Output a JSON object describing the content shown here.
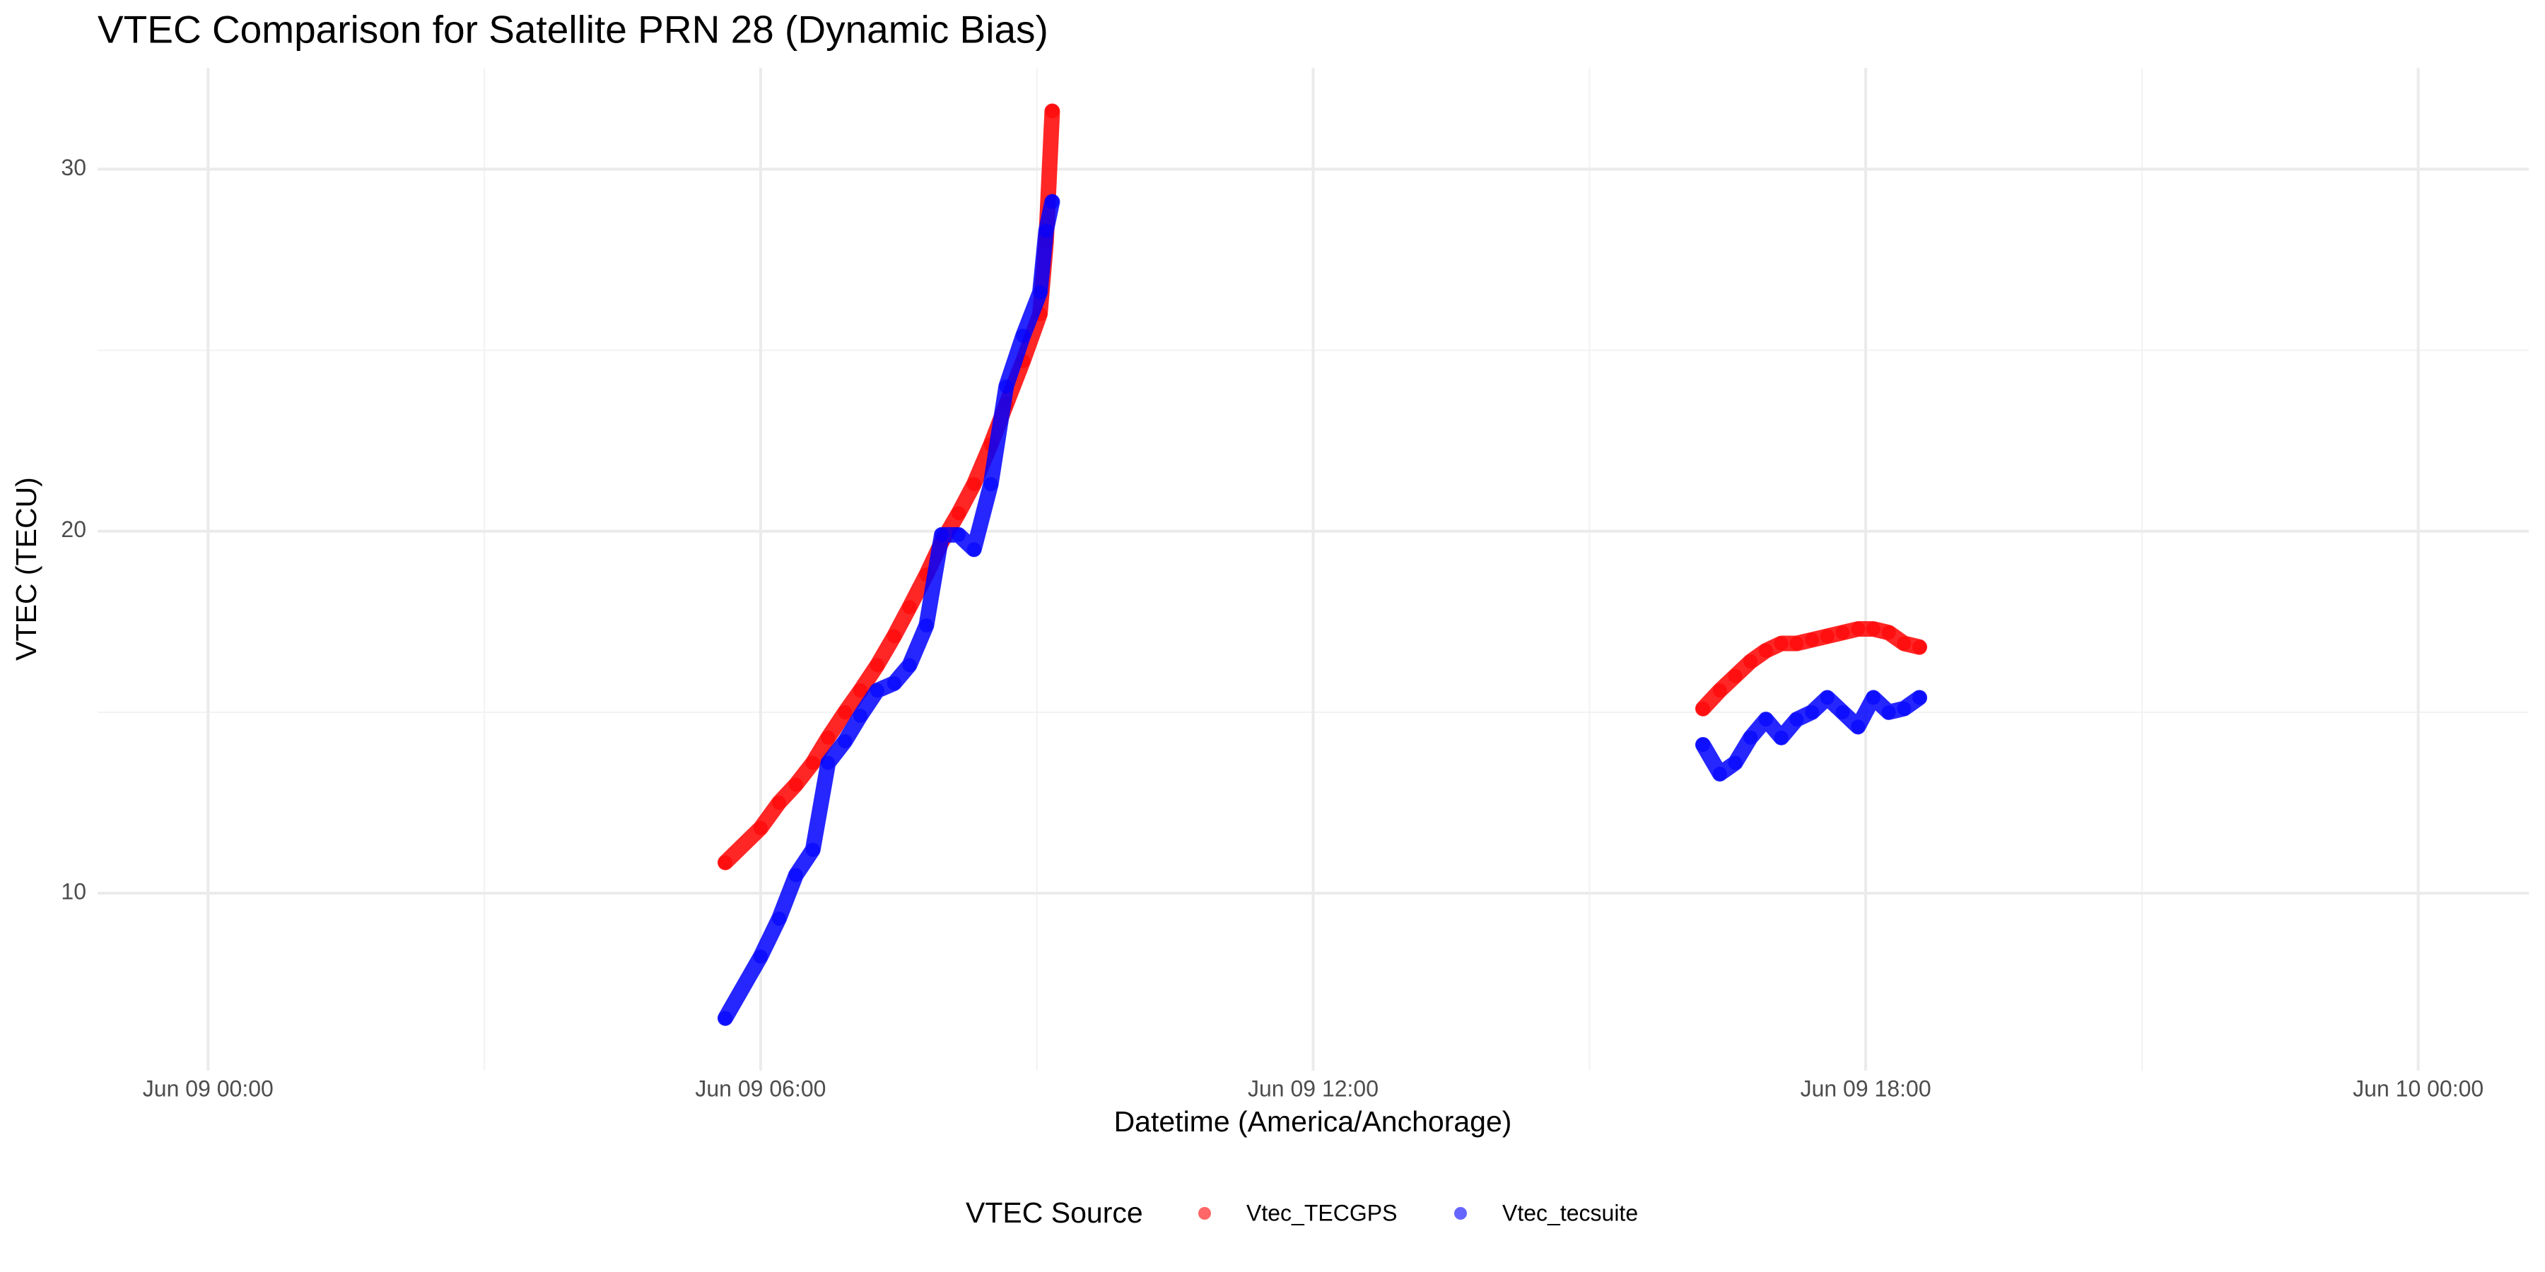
{
  "chart_data": {
    "type": "scatter",
    "title": "VTEC Comparison for Satellite PRN 28 (Dynamic Bias)",
    "x_label": "Datetime (America/Anchorage)",
    "y_label": "VTEC (TECU)",
    "legend_title": "VTEC Source",
    "legend_position": "bottom",
    "grid": true,
    "x": [
      "Jun 09 05:37",
      "Jun 09 06:00",
      "Jun 09 06:12",
      "Jun 09 06:23",
      "Jun 09 06:34",
      "Jun 09 06:44",
      "Jun 09 06:55",
      "Jun 09 07:05",
      "Jun 09 07:16",
      "Jun 09 07:27",
      "Jun 09 07:37",
      "Jun 09 07:48",
      "Jun 09 07:58",
      "Jun 09 08:09",
      "Jun 09 08:19",
      "Jun 09 08:30",
      "Jun 09 08:40",
      "Jun 09 08:51",
      "Jun 09 09:02",
      "Jun 09 09:06",
      "Jun 09 09:10",
      "Jun 09 16:14",
      "Jun 09 16:25",
      "Jun 09 16:35",
      "Jun 09 16:45",
      "Jun 09 16:55",
      "Jun 09 17:05",
      "Jun 09 17:15",
      "Jun 09 17:25",
      "Jun 09 17:35",
      "Jun 09 17:45",
      "Jun 09 17:55",
      "Jun 09 18:05",
      "Jun 09 18:15",
      "Jun 09 18:25",
      "Jun 09 18:35"
    ],
    "series": [
      {
        "name": "Vtec_TECGPS",
        "color": "#ff0000",
        "values": [
          10.85,
          11.8,
          12.5,
          13.0,
          13.6,
          14.3,
          15.0,
          15.6,
          16.3,
          17.1,
          17.9,
          18.8,
          19.7,
          20.5,
          21.3,
          22.4,
          23.5,
          24.7,
          26.0,
          28.0,
          31.6,
          15.1,
          15.6,
          16.0,
          16.4,
          16.7,
          16.9,
          16.9,
          17.0,
          17.1,
          17.2,
          17.3,
          17.3,
          17.2,
          16.9,
          16.8
        ]
      },
      {
        "name": "Vtec_tecsuite",
        "color": "#0000ff",
        "values": [
          6.55,
          8.25,
          9.3,
          10.5,
          11.2,
          13.6,
          14.2,
          14.9,
          15.6,
          15.8,
          16.3,
          17.4,
          19.9,
          19.9,
          19.5,
          21.3,
          24.0,
          25.4,
          26.6,
          28.3,
          29.1,
          14.1,
          13.3,
          13.6,
          14.3,
          14.8,
          14.3,
          14.8,
          15.0,
          15.4,
          15.0,
          14.6,
          15.4,
          15.0,
          15.1,
          15.4
        ]
      }
    ],
    "xlim": [
      "Jun 08 22:48",
      "Jun 10 01:12"
    ],
    "xticks": [
      "Jun 09 00:00",
      "Jun 09 06:00",
      "Jun 09 12:00",
      "Jun 09 18:00",
      "Jun 10 00:00"
    ],
    "ylim": [
      5.1,
      32.8
    ],
    "yticks": [
      10,
      20,
      30
    ]
  }
}
